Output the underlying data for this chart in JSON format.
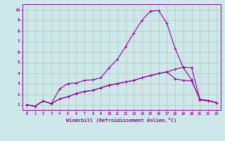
{
  "xlabel": "Windchill (Refroidissement éolien,°C)",
  "background_color": "#cce8e8",
  "line_color": "#990099",
  "grid_color": "#bbbbbb",
  "xlim": [
    -0.5,
    23.5
  ],
  "ylim": [
    0.5,
    10.5
  ],
  "xticks": [
    0,
    1,
    2,
    3,
    4,
    5,
    6,
    7,
    8,
    9,
    10,
    11,
    12,
    13,
    14,
    15,
    16,
    17,
    18,
    19,
    20,
    21,
    22,
    23
  ],
  "yticks": [
    1,
    2,
    3,
    4,
    5,
    6,
    7,
    8,
    9,
    10
  ],
  "line1_x": [
    0,
    1,
    2,
    3,
    4,
    5,
    6,
    7,
    8,
    9,
    10,
    11,
    12,
    13,
    14,
    15,
    16,
    17,
    18,
    19,
    20,
    21,
    22,
    23
  ],
  "line1_y": [
    1.0,
    0.85,
    1.35,
    1.1,
    1.55,
    1.75,
    2.05,
    2.25,
    2.35,
    2.6,
    2.85,
    3.0,
    3.15,
    3.3,
    3.55,
    3.75,
    3.95,
    4.1,
    4.35,
    4.55,
    4.5,
    1.5,
    1.4,
    1.2
  ],
  "line2_x": [
    0,
    1,
    2,
    3,
    4,
    5,
    6,
    7,
    8,
    9,
    10,
    11,
    12,
    13,
    14,
    15,
    16,
    17,
    18,
    19,
    20,
    21,
    22,
    23
  ],
  "line2_y": [
    1.0,
    0.85,
    1.35,
    1.1,
    2.5,
    3.0,
    3.05,
    3.3,
    3.35,
    3.55,
    4.5,
    5.3,
    6.5,
    7.8,
    9.0,
    9.85,
    9.9,
    8.7,
    6.3,
    4.5,
    3.35,
    1.45,
    1.35,
    1.2
  ],
  "line3_x": [
    0,
    1,
    2,
    3,
    4,
    5,
    6,
    7,
    8,
    9,
    10,
    11,
    12,
    13,
    14,
    15,
    16,
    17,
    18,
    19,
    20,
    21,
    22,
    23
  ],
  "line3_y": [
    1.0,
    0.85,
    1.35,
    1.1,
    1.55,
    1.75,
    2.05,
    2.25,
    2.35,
    2.6,
    2.85,
    3.0,
    3.15,
    3.3,
    3.55,
    3.75,
    3.95,
    4.1,
    3.45,
    3.3,
    3.25,
    1.5,
    1.4,
    1.2
  ]
}
